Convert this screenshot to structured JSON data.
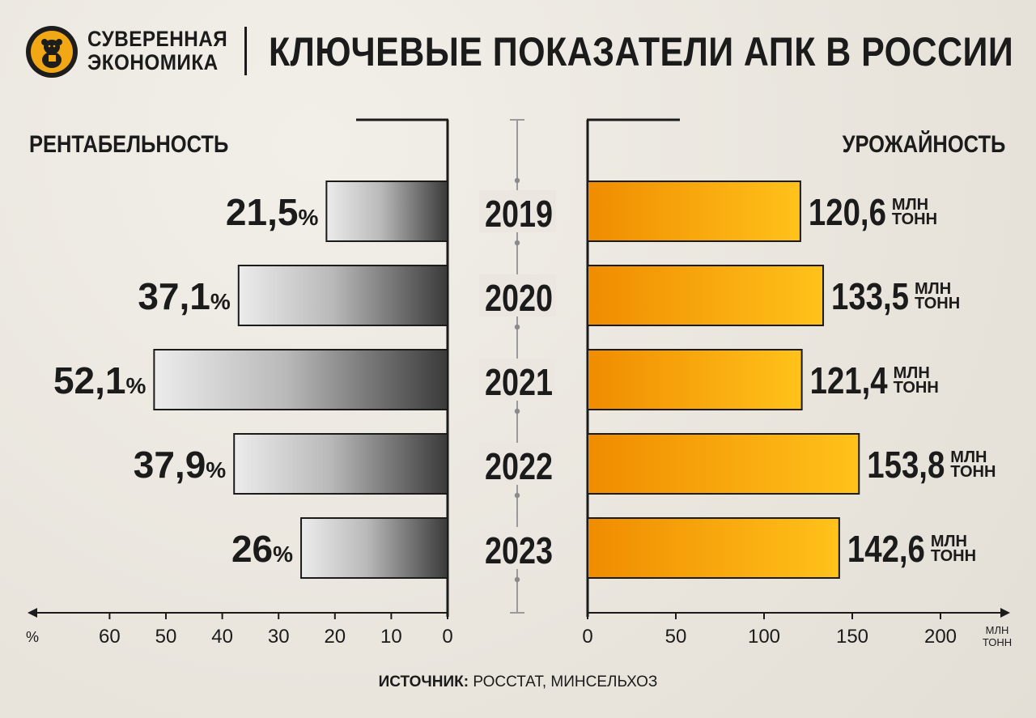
{
  "header": {
    "brand_line1": "СУВЕРЕННАЯ",
    "brand_line2": "ЭКОНОМИКА",
    "title": "КЛЮЧЕВЫЕ ПОКАЗАТЕЛИ АПК В РОССИИ",
    "logo_icon": "bear-icon"
  },
  "source": {
    "label": "ИСТОЧНИК:",
    "text": "РОССТАТ, МИНСЕЛЬХОЗ"
  },
  "colors": {
    "accent": "#f2a814",
    "gray_dark": "#3a3a3a",
    "gray_light": "#ececec",
    "text": "#1b1b1b"
  },
  "chart_data": [
    {
      "type": "bar",
      "orientation": "horizontal",
      "direction": "leftward",
      "title": "РЕНТАБЕЛЬНОСТЬ",
      "categories": [
        "2019",
        "2020",
        "2021",
        "2022",
        "2023"
      ],
      "values": [
        21.5,
        37.1,
        52.1,
        37.9,
        26
      ],
      "value_labels": [
        "21,5",
        "37,1",
        "52,1",
        "37,9",
        "26"
      ],
      "value_suffix": "%",
      "axis_unit": "%",
      "xlim": [
        0,
        60
      ],
      "ticks": [
        0,
        10,
        20,
        30,
        40,
        50,
        60
      ],
      "grid": false
    },
    {
      "type": "bar",
      "orientation": "horizontal",
      "direction": "rightward",
      "title": "УРОЖАЙНОСТЬ",
      "categories": [
        "2019",
        "2020",
        "2021",
        "2022",
        "2023"
      ],
      "values": [
        120.6,
        133.5,
        121.4,
        153.8,
        142.6
      ],
      "value_labels": [
        "120,6",
        "133,5",
        "121,4",
        "153,8",
        "142,6"
      ],
      "unit_line1": "МЛН",
      "unit_line2": "ТОНН",
      "axis_unit_line1": "МЛН",
      "axis_unit_line2": "ТОНН",
      "xlim": [
        0,
        200
      ],
      "ticks": [
        0,
        50,
        100,
        150,
        200
      ],
      "grid": false
    }
  ]
}
